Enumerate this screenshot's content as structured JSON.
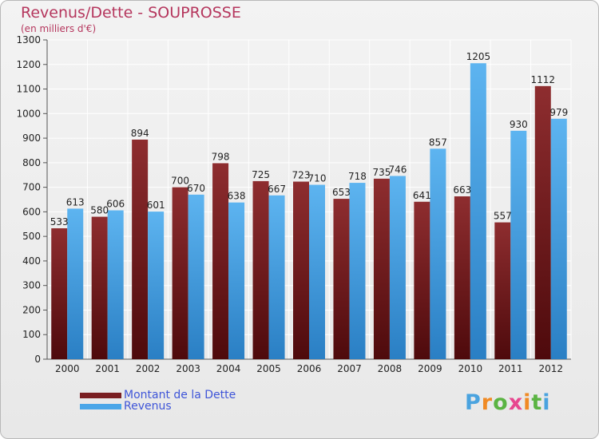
{
  "title": "Revenus/Dette - SOUPROSSE",
  "subtitle": "(en milliers d'€)",
  "logo": {
    "letters": [
      "P",
      "r",
      "o",
      "x",
      "i",
      "t",
      "i"
    ],
    "colors": [
      "#4aa3df",
      "#f08a24",
      "#5bb443",
      "#e7478f",
      "#f08a24",
      "#5bb443",
      "#4aa3df"
    ]
  },
  "colors": {
    "dette": "#7a1f22",
    "revenus": "#4aa6e8"
  },
  "chart_data": {
    "type": "bar",
    "title": "Revenus/Dette - SOUPROSSE",
    "ylabel": "(en milliers d'€)",
    "categories": [
      "2000",
      "2001",
      "2002",
      "2003",
      "2004",
      "2005",
      "2006",
      "2007",
      "2008",
      "2009",
      "2010",
      "2011",
      "2012"
    ],
    "series": [
      {
        "name": "Montant de la Dette",
        "values": [
          533,
          580,
          894,
          700,
          798,
          725,
          723,
          653,
          735,
          641,
          663,
          557,
          1112
        ]
      },
      {
        "name": "Revenus",
        "values": [
          613,
          606,
          601,
          670,
          638,
          667,
          710,
          718,
          746,
          857,
          1205,
          930,
          979
        ]
      }
    ],
    "ylim": [
      0,
      1300
    ],
    "yticks": [
      0,
      100,
      200,
      300,
      400,
      500,
      600,
      700,
      800,
      900,
      1000,
      1100,
      1200,
      1300
    ],
    "grid": true,
    "legend": "bottom-left"
  }
}
